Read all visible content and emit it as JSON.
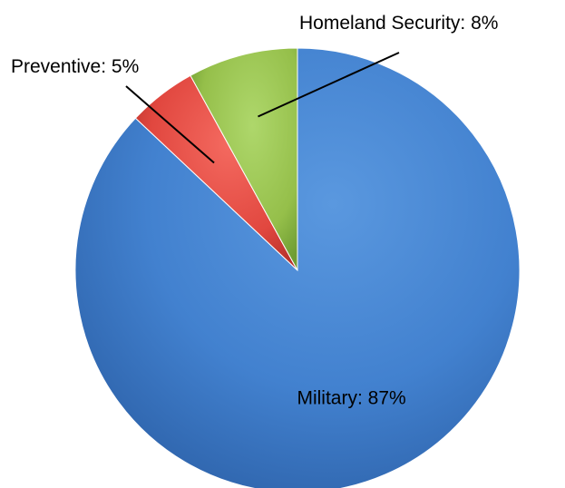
{
  "chart_data": {
    "type": "pie",
    "categories": [
      "Military",
      "Preventive",
      "Homeland Security"
    ],
    "values": [
      87,
      5,
      8
    ],
    "labels": [
      "Military: 87%",
      "Preventive: 5%",
      "Homeland Security: 8%"
    ],
    "colors": [
      "#3f7fce",
      "#e1473f",
      "#95bf4a"
    ],
    "label_placement": [
      "inside",
      "outside-left-top",
      "outside-top-right"
    ]
  }
}
